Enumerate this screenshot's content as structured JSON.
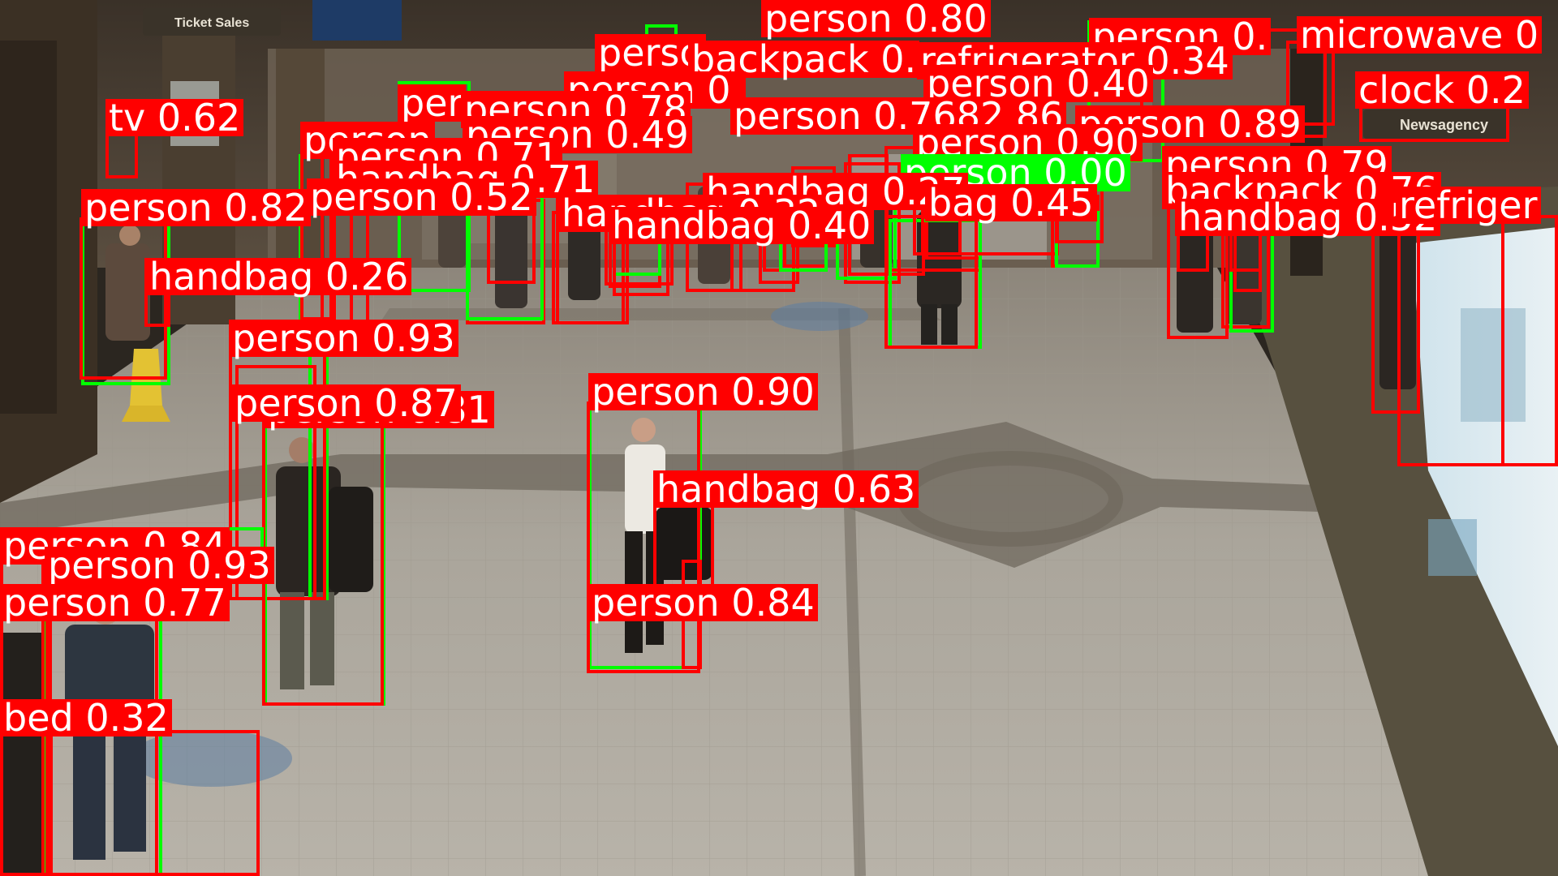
{
  "signage": {
    "ticket_sales": "Ticket Sales",
    "newsagency": "Newsagency"
  },
  "colors": {
    "box_primary": "#ff0000",
    "box_secondary": "#00ff00",
    "label_text": "#ffffff"
  },
  "detections": [
    {
      "label": "person 0.80",
      "color": "red"
    },
    {
      "label": "person 0.",
      "color": "red"
    },
    {
      "label": "microwave 0",
      "color": "red"
    },
    {
      "label": "perso",
      "color": "red"
    },
    {
      "label": "backpack 0.",
      "color": "red"
    },
    {
      "label": "refrigerator 0.34",
      "color": "red"
    },
    {
      "label": "person 0.40",
      "color": "red"
    },
    {
      "label": "clock 0.2",
      "color": "red"
    },
    {
      "label": "person 0.",
      "color": "red"
    },
    {
      "label": "per",
      "color": "red"
    },
    {
      "label": "person 0.78",
      "color": "red"
    },
    {
      "label": "person 0.7682.86",
      "color": "red"
    },
    {
      "label": "person 0.89",
      "color": "red"
    },
    {
      "label": "tv 0.62",
      "color": "red"
    },
    {
      "label": "person",
      "color": "red"
    },
    {
      "label": "person 0.49",
      "color": "red"
    },
    {
      "label": "person 0.90",
      "color": "red"
    },
    {
      "label": "person 0.71",
      "color": "red"
    },
    {
      "label": "person 0.00",
      "color": "green"
    },
    {
      "label": "person 0.79",
      "color": "red"
    },
    {
      "label": "handbag 0.71",
      "color": "red"
    },
    {
      "label": "backpack 0.76",
      "color": "red"
    },
    {
      "label": "person 0.52",
      "color": "red"
    },
    {
      "label": "handbag 0.27",
      "color": "red"
    },
    {
      "label": "bag 0.45",
      "color": "red"
    },
    {
      "label": "person 0.82",
      "color": "red"
    },
    {
      "label": "handbag 0.32",
      "color": "red"
    },
    {
      "label": "handbag 0.52",
      "color": "red"
    },
    {
      "label": "refriger",
      "color": "red"
    },
    {
      "label": "handbag 0.40",
      "color": "red"
    },
    {
      "label": "handbag 0.26",
      "color": "red"
    },
    {
      "label": "person 0.93",
      "color": "red"
    },
    {
      "label": "person 0.81",
      "color": "red"
    },
    {
      "label": "person 0.87",
      "color": "red"
    },
    {
      "label": "person 0.90",
      "color": "red"
    },
    {
      "label": "handbag 0.63",
      "color": "red"
    },
    {
      "label": "person 0.84",
      "color": "red"
    },
    {
      "label": "person 0.93",
      "color": "red"
    },
    {
      "label": "person 0.77",
      "color": "red"
    },
    {
      "label": "person 0.84",
      "color": "red"
    },
    {
      "label": "bed 0.32",
      "color": "red"
    }
  ]
}
